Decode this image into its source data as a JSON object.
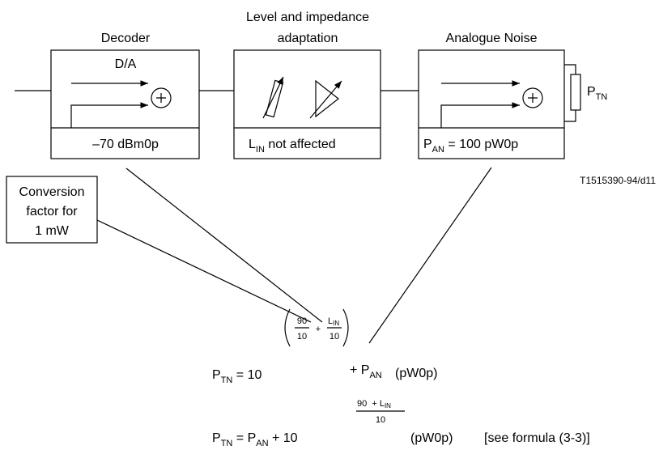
{
  "decoder": {
    "title": "Decoder",
    "inner": "D/A",
    "label": "–70 dBm0p"
  },
  "adaptation": {
    "title": [
      "Level and impedance",
      "adaptation"
    ],
    "label": {
      "main": "L",
      "sub": "IN",
      "rest": " not affected"
    }
  },
  "noise": {
    "title": "Analogue Noise",
    "label": {
      "main": "P",
      "sub": "AN",
      "rest": " = 100 pW0p"
    }
  },
  "load": {
    "main": "P",
    "sub": "TN"
  },
  "figure_id": "T1515390-94/d11",
  "note": [
    "Conversion",
    "factor for",
    "1 mW"
  ],
  "formula1": {
    "lhs": "P",
    "lhs_sub": "TN",
    "eq": " = 10",
    "frac1_num": "90",
    "frac1_den": "10",
    "plus": "+",
    "frac2_num": "L",
    "frac2_num_sub": "IN",
    "frac2_den": "10",
    "tail": "+ P",
    "tail_sub": "AN",
    "unit": "(pW0p)"
  },
  "formula2": {
    "lhs": "P",
    "lhs_sub": "TN",
    "eq": " = P",
    "eq_sub": "AN",
    "plus": " + 10",
    "exp_num": "90  + L",
    "exp_num_sub": "IN",
    "exp_den": "10",
    "unit": "(pW0p)",
    "ref": "[see formula (3-3)]"
  }
}
